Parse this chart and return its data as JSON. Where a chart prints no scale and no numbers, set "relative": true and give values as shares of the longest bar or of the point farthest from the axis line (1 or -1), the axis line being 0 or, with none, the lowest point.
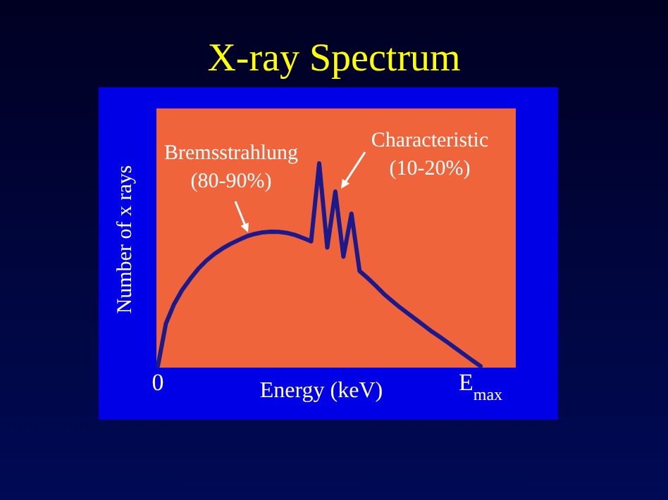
{
  "chart_data": {
    "type": "line",
    "title": "X-ray Spectrum",
    "xlabel": "Energy (keV)",
    "ylabel": "Number of x rays",
    "relative": true,
    "categories": [
      "0",
      null,
      null,
      null,
      null,
      null,
      null,
      null,
      null,
      null,
      null,
      null,
      null,
      null,
      null,
      null,
      null,
      null,
      null,
      null,
      null,
      null,
      null,
      null,
      null,
      null,
      null,
      null,
      null,
      null,
      null,
      null,
      null,
      null,
      null,
      null,
      null,
      null,
      null,
      null,
      "E$_{max}$"
    ],
    "series": [
      {
        "color": "#1a1a8c",
        "values": [
          0,
          0.21,
          0.305,
          0.375,
          0.43,
          0.48,
          0.52,
          0.553,
          0.58,
          0.603,
          0.622,
          0.64,
          0.652,
          0.66,
          0.663,
          0.662,
          0.657,
          0.647,
          0.632,
          0.616,
          1,
          0.585,
          0.861,
          0.54,
          0.752,
          0.47,
          0.435,
          0.397,
          0.357,
          0.323,
          0.29,
          0.26,
          0.23,
          0.2,
          0.17,
          0.143,
          0.115,
          0.086,
          0.057,
          0.028,
          0
        ]
      }
    ],
    "annotations": [
      "Bremsstrahlung\n(80-90%)",
      "Characteristic\n(10-20%)"
    ]
  }
}
